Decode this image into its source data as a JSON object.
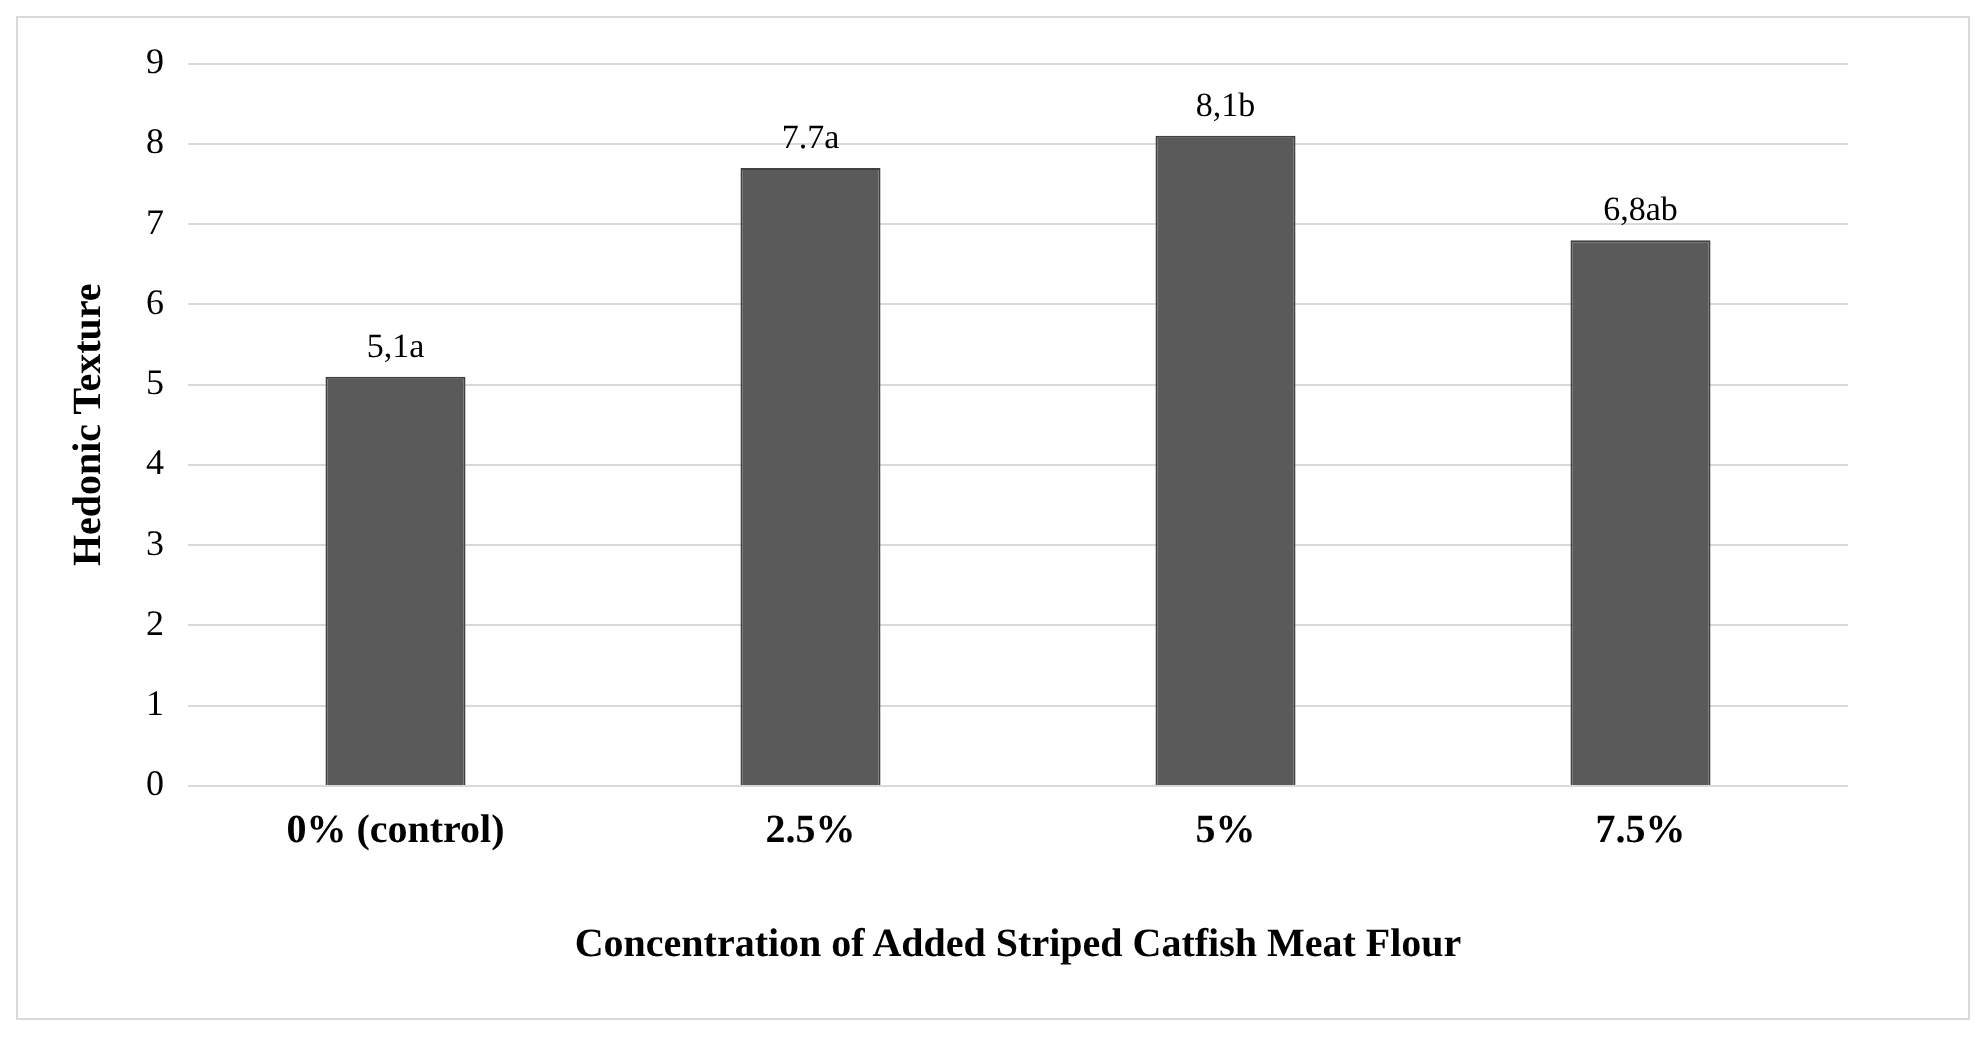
{
  "chart_data": {
    "type": "bar",
    "xlabel": "Concentration of Added Striped Catfish Meat Flour",
    "ylabel": "Hedonic Texture",
    "categories": [
      "0% (control)",
      "2.5%",
      "5%",
      "7.5%"
    ],
    "values": [
      5.1,
      7.7,
      8.1,
      6.8
    ],
    "value_labels": [
      "5,1a",
      "7.7a",
      "8,1b",
      "6,8ab"
    ],
    "color": "#5a5a5a",
    "ylim": [
      0,
      9
    ],
    "yticks": [
      0,
      1,
      2,
      3,
      4,
      5,
      6,
      7,
      8,
      9
    ],
    "grid": "y",
    "legend": false
  }
}
